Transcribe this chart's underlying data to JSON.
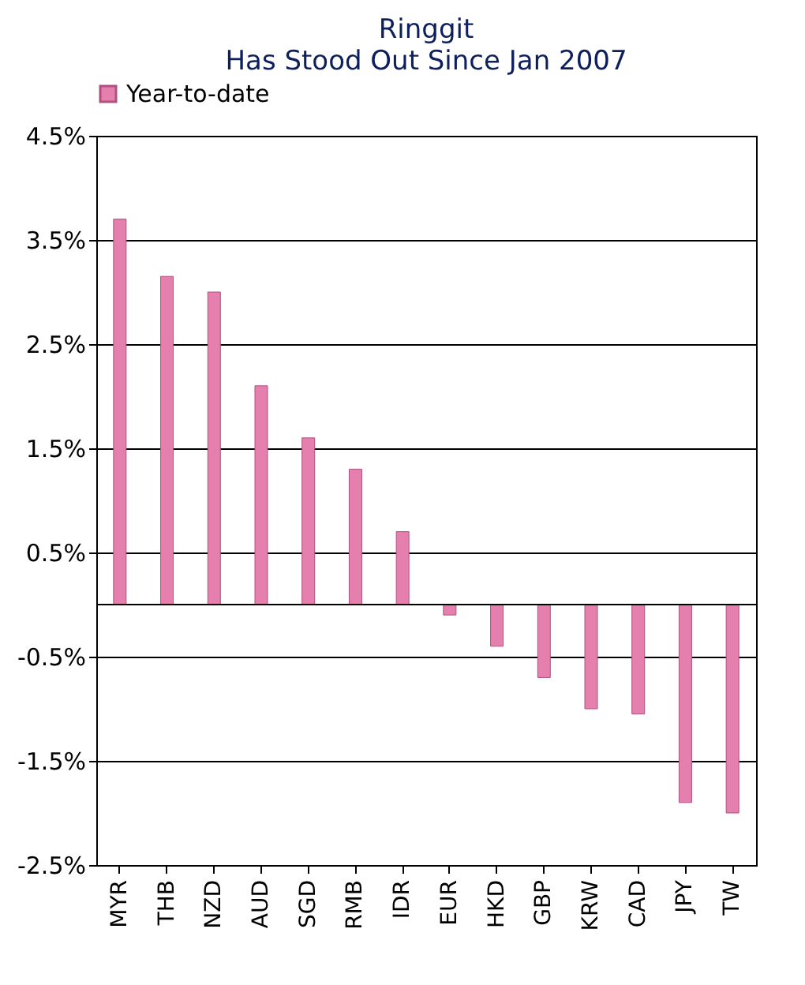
{
  "chart_data": {
    "type": "bar",
    "title": "Ringgit",
    "subtitle": "Has Stood Out Since Jan 2007",
    "categories": [
      "MYR",
      "THB",
      "NZD",
      "AUD",
      "SGD",
      "RMB",
      "IDR",
      "EUR",
      "HKD",
      "GBP",
      "KRW",
      "CAD",
      "JPY",
      "TW"
    ],
    "series": [
      {
        "name": "Year-to-date",
        "color": "#e57fae",
        "values": [
          3.7,
          3.15,
          3.0,
          2.1,
          1.6,
          1.3,
          0.7,
          -0.1,
          -0.4,
          -0.7,
          -1.0,
          -1.05,
          -1.9,
          -2.0
        ]
      }
    ],
    "ylim": [
      -2.5,
      4.5
    ],
    "yticks": [
      {
        "value": -2.5,
        "label": "-2.5%"
      },
      {
        "value": -1.5,
        "label": "-1.5%"
      },
      {
        "value": -0.5,
        "label": "-0.5%"
      },
      {
        "value": 0.5,
        "label": "0.5%"
      },
      {
        "value": 1.5,
        "label": "1.5%"
      },
      {
        "value": 2.5,
        "label": "2.5%"
      },
      {
        "value": 3.5,
        "label": "3.5%"
      },
      {
        "value": 4.5,
        "label": "4.5%"
      }
    ],
    "grid": "y",
    "legend": "top left"
  }
}
